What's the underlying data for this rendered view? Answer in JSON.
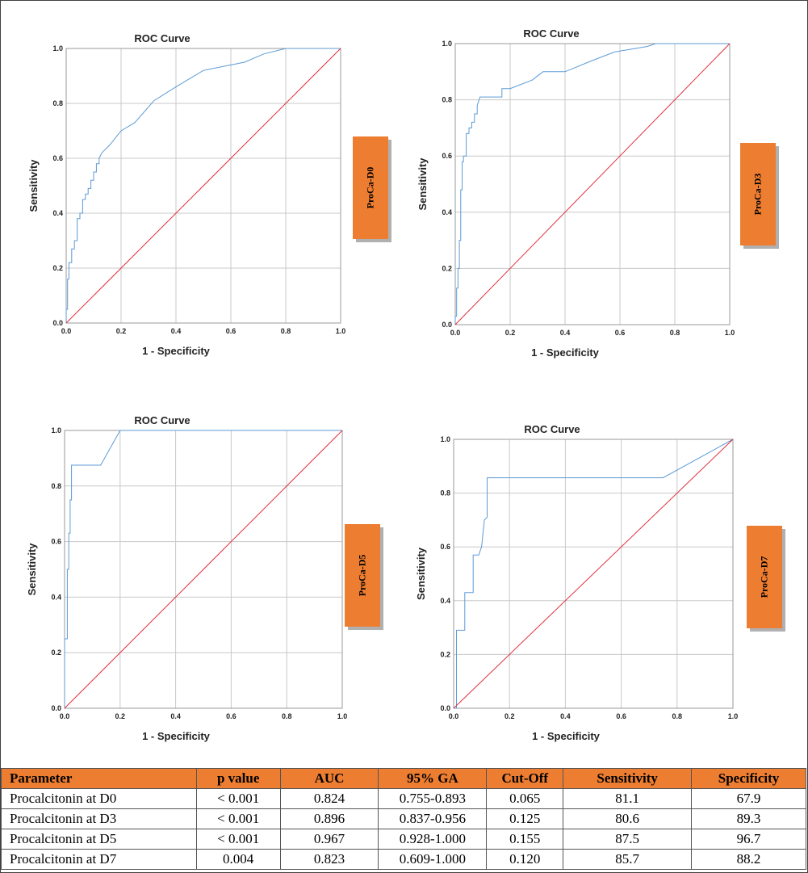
{
  "chart_data": [
    {
      "type": "line",
      "title": "ROC Curve",
      "xlabel": "1 - Specificity",
      "ylabel": "Sensitivity",
      "xlim": [
        0,
        1
      ],
      "ylim": [
        0,
        1
      ],
      "ticks": [
        "0.0",
        "0.2",
        "0.4",
        "0.6",
        "0.8",
        "1.0"
      ],
      "grid": true,
      "tag": "ProCa-D0",
      "series": [
        {
          "color": "#5b9bd5",
          "x": [
            0,
            0,
            0.005,
            0.005,
            0.01,
            0.01,
            0.02,
            0.02,
            0.03,
            0.03,
            0.04,
            0.04,
            0.05,
            0.05,
            0.06,
            0.06,
            0.07,
            0.07,
            0.08,
            0.08,
            0.09,
            0.09,
            0.1,
            0.1,
            0.11,
            0.11,
            0.12,
            0.12,
            0.13,
            0.14,
            0.16,
            0.2,
            0.25,
            0.32,
            0.4,
            0.5,
            0.6,
            0.65,
            0.72,
            0.8,
            1.0
          ],
          "y": [
            0,
            0.05,
            0.05,
            0.16,
            0.16,
            0.22,
            0.22,
            0.27,
            0.27,
            0.3,
            0.3,
            0.38,
            0.38,
            0.4,
            0.4,
            0.45,
            0.45,
            0.47,
            0.47,
            0.49,
            0.49,
            0.52,
            0.52,
            0.55,
            0.55,
            0.58,
            0.58,
            0.6,
            0.62,
            0.63,
            0.65,
            0.7,
            0.73,
            0.81,
            0.86,
            0.92,
            0.94,
            0.95,
            0.98,
            1.0,
            1.0
          ]
        },
        {
          "color": "#e0303d",
          "x": [
            0,
            1
          ],
          "y": [
            0,
            1
          ]
        }
      ]
    },
    {
      "type": "line",
      "title": "ROC Curve",
      "xlabel": "1 - Specificity",
      "ylabel": "Sensitivity",
      "xlim": [
        0,
        1
      ],
      "ylim": [
        0,
        1
      ],
      "ticks": [
        "0.0",
        "0.2",
        "0.4",
        "0.6",
        "0.8",
        "1.0"
      ],
      "grid": true,
      "tag": "ProCa-D3",
      "series": [
        {
          "color": "#5b9bd5",
          "x": [
            0,
            0,
            0.005,
            0.005,
            0.01,
            0.01,
            0.015,
            0.015,
            0.02,
            0.02,
            0.025,
            0.025,
            0.03,
            0.03,
            0.04,
            0.04,
            0.05,
            0.05,
            0.06,
            0.06,
            0.07,
            0.07,
            0.08,
            0.08,
            0.09,
            0.1,
            0.17,
            0.17,
            0.2,
            0.28,
            0.32,
            0.4,
            0.5,
            0.58,
            0.7,
            0.73,
            1.0
          ],
          "y": [
            0,
            0.03,
            0.03,
            0.13,
            0.13,
            0.2,
            0.2,
            0.3,
            0.3,
            0.48,
            0.48,
            0.58,
            0.58,
            0.6,
            0.6,
            0.68,
            0.68,
            0.7,
            0.7,
            0.72,
            0.72,
            0.75,
            0.75,
            0.78,
            0.81,
            0.81,
            0.81,
            0.84,
            0.84,
            0.87,
            0.9,
            0.9,
            0.94,
            0.97,
            0.99,
            1.0,
            1.0
          ]
        },
        {
          "color": "#e0303d",
          "x": [
            0,
            1
          ],
          "y": [
            0,
            1
          ]
        }
      ]
    },
    {
      "type": "line",
      "title": "ROC Curve",
      "xlabel": "1 - Specificity",
      "ylabel": "Sensitivity",
      "xlim": [
        0,
        1
      ],
      "ylim": [
        0,
        1
      ],
      "ticks": [
        "0.0",
        "0.2",
        "0.4",
        "0.6",
        "0.8",
        "1.0"
      ],
      "grid": true,
      "tag": "ProCa-D5",
      "series": [
        {
          "color": "#5b9bd5",
          "x": [
            0,
            0,
            0.01,
            0.01,
            0.015,
            0.015,
            0.02,
            0.02,
            0.025,
            0.025,
            0.03,
            0.03,
            0.13,
            0.2,
            1.0
          ],
          "y": [
            0,
            0.25,
            0.25,
            0.5,
            0.5,
            0.63,
            0.63,
            0.75,
            0.75,
            0.875,
            0.875,
            0.875,
            0.875,
            1.0,
            1.0
          ]
        },
        {
          "color": "#e0303d",
          "x": [
            0,
            1
          ],
          "y": [
            0,
            1
          ]
        }
      ]
    },
    {
      "type": "line",
      "title": "ROC Curve",
      "xlabel": "1 - Specificity",
      "ylabel": "Sensitivity",
      "xlim": [
        0,
        1
      ],
      "ylim": [
        0,
        1
      ],
      "ticks": [
        "0.0",
        "0.2",
        "0.4",
        "0.6",
        "0.8",
        "1.0"
      ],
      "grid": true,
      "tag": "ProCa-D7",
      "series": [
        {
          "color": "#5b9bd5",
          "x": [
            0,
            0.01,
            0.01,
            0.04,
            0.04,
            0.07,
            0.07,
            0.09,
            0.1,
            0.11,
            0.12,
            0.12,
            0.75,
            1.0
          ],
          "y": [
            0,
            0,
            0.29,
            0.29,
            0.43,
            0.43,
            0.57,
            0.57,
            0.6,
            0.7,
            0.71,
            0.857,
            0.857,
            1.0
          ]
        },
        {
          "color": "#e0303d",
          "x": [
            0,
            1
          ],
          "y": [
            0,
            1
          ]
        }
      ]
    }
  ],
  "table": {
    "headers": [
      "Parameter",
      "p value",
      "AUC",
      "95% GA",
      "Cut-Off",
      "Sensitivity",
      "Specificity"
    ],
    "rows": [
      [
        "Procalcitonin at D0",
        "< 0.001",
        "0.824",
        "0.755-0.893",
        "0.065",
        "81.1",
        "67.9"
      ],
      [
        "Procalcitonin at D3",
        "< 0.001",
        "0.896",
        "0.837-0.956",
        "0.125",
        "80.6",
        "89.3"
      ],
      [
        "Procalcitonin at D5",
        "< 0.001",
        "0.967",
        "0.928-1.000",
        "0.155",
        "87.5",
        "96.7"
      ],
      [
        "Procalcitonin at D7",
        "0.004",
        "0.823",
        "0.609-1.000",
        "0.120",
        "85.7",
        "88.2"
      ]
    ]
  }
}
